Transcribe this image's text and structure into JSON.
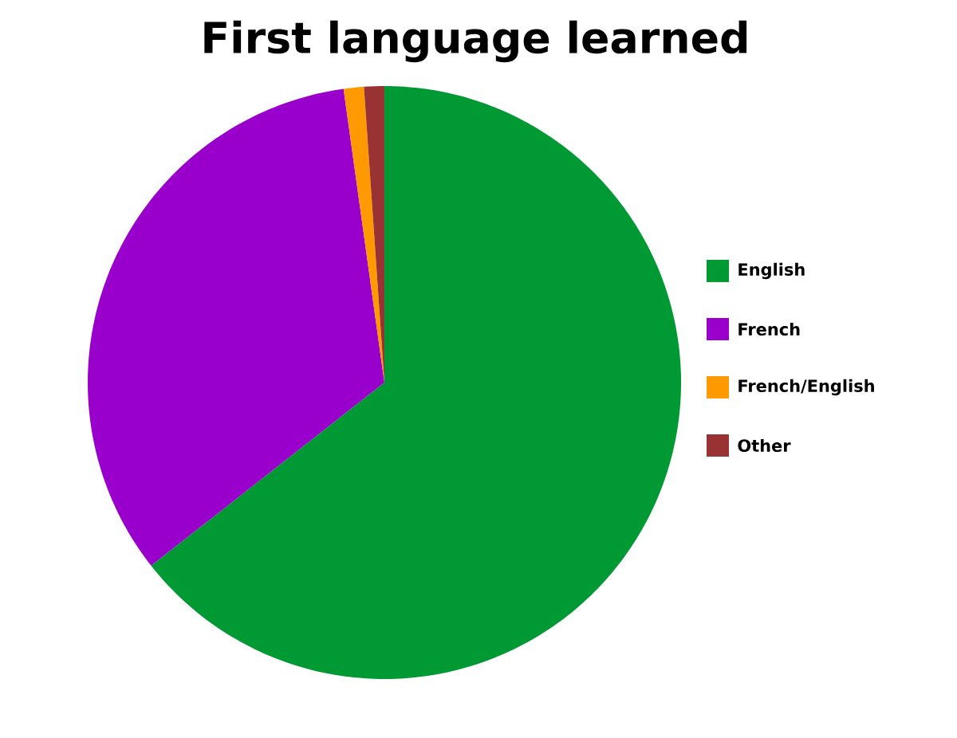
{
  "chart_data": {
    "type": "pie",
    "title": "First language learned",
    "categories": [
      "English",
      "French",
      "French/English",
      "Other"
    ],
    "values": [
      64.4,
      33.4,
      1.1,
      1.1
    ],
    "colors": [
      "#009933",
      "#9900cc",
      "#ff9900",
      "#993333"
    ],
    "legend": "right"
  }
}
